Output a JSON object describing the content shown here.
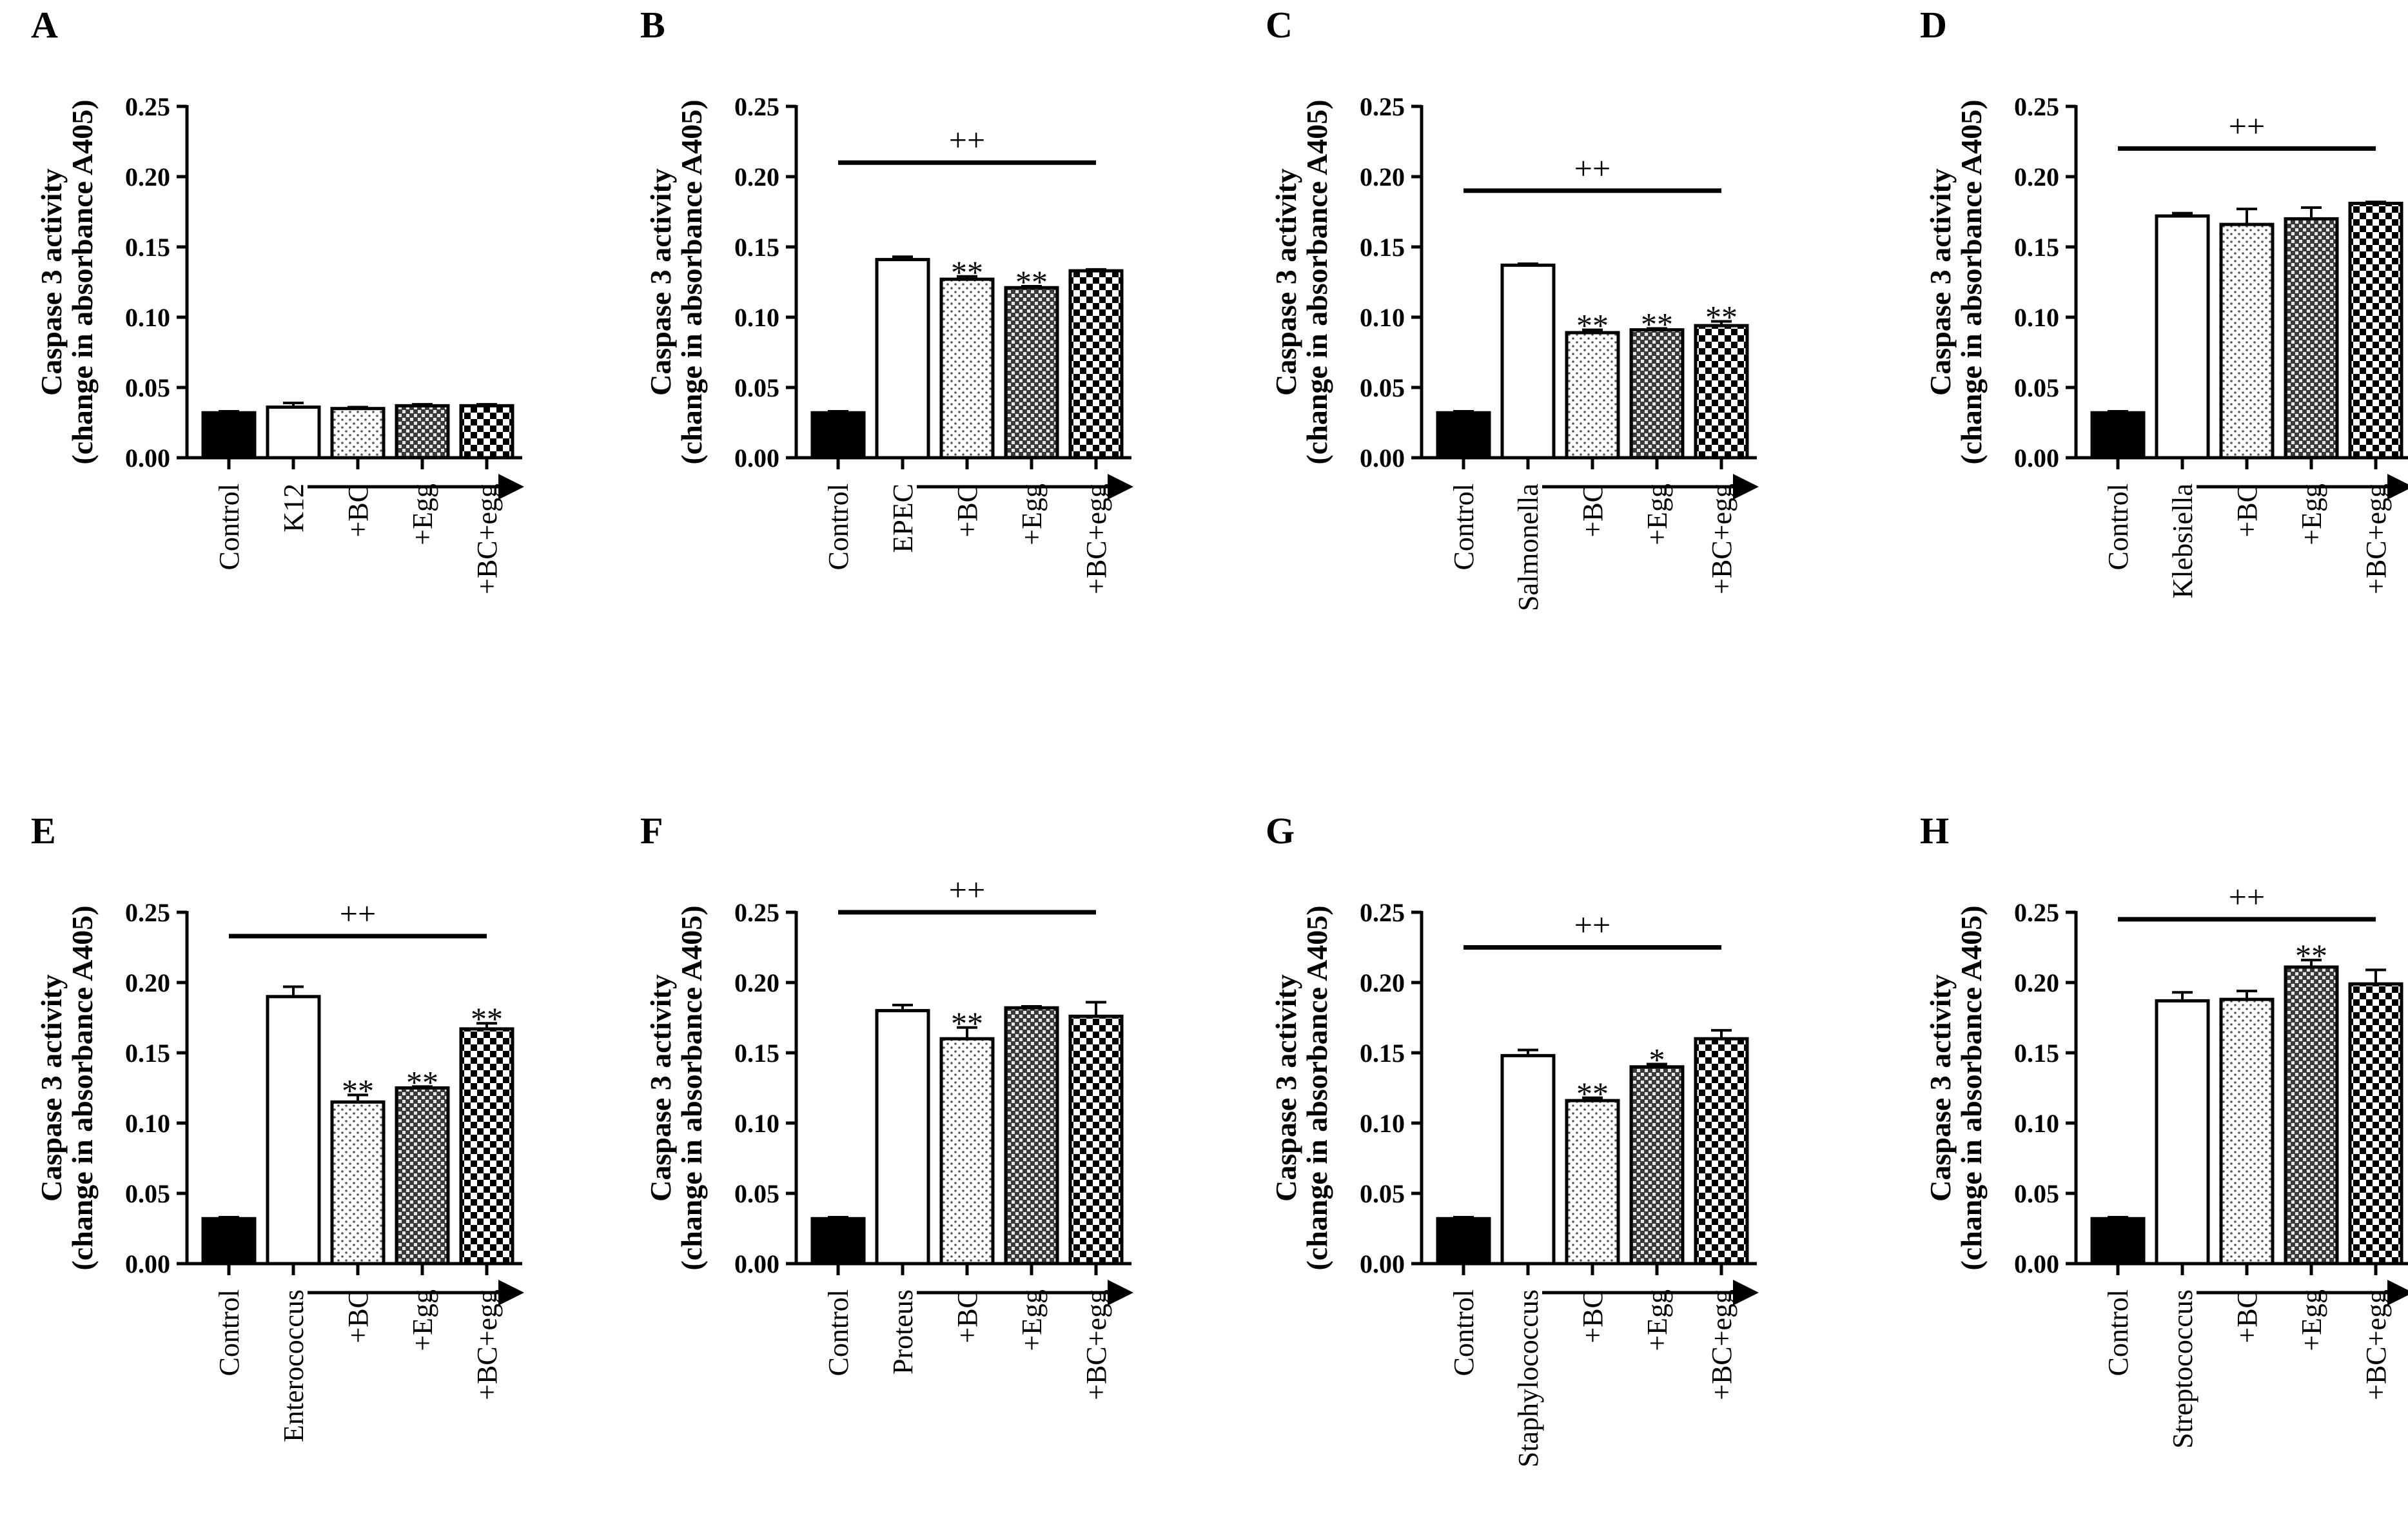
{
  "colors": {
    "control": "#000000",
    "infected": "#ffffff",
    "ink": "#000000"
  },
  "chart_data": [
    {
      "panel": "A",
      "type": "bar",
      "title": "",
      "ylabel": "Caspase 3 activity",
      "ylabel2": "(change in absorbance A405)",
      "yticks": [
        "0.00",
        "0.05",
        "0.10",
        "0.15",
        "0.20",
        "0.25"
      ],
      "ylim": [
        0,
        0.25
      ],
      "categories": [
        "Control",
        "K12",
        "+BC",
        "+Egg",
        "+BC+egg"
      ],
      "patterns": [
        "solid",
        "open",
        "dots",
        "grid",
        "checker"
      ],
      "values": [
        0.032,
        0.036,
        0.035,
        0.037,
        0.037
      ],
      "errors": [
        0.001,
        0.003,
        0.001,
        0.001,
        0.001
      ],
      "stars": [
        "",
        "",
        "",
        "",
        ""
      ],
      "bracket": null
    },
    {
      "panel": "B",
      "type": "bar",
      "title": "",
      "ylabel": "Caspase 3 activity",
      "ylabel2": "(change in absorbance A405)",
      "yticks": [
        "0.00",
        "0.05",
        "0.10",
        "0.15",
        "0.20",
        "0.25"
      ],
      "ylim": [
        0,
        0.25
      ],
      "categories": [
        "Control",
        "EPEC",
        "+BC",
        "+Egg",
        "+BC+egg"
      ],
      "patterns": [
        "solid",
        "open",
        "dots",
        "grid",
        "checker"
      ],
      "values": [
        0.032,
        0.141,
        0.127,
        0.121,
        0.133
      ],
      "errors": [
        0.001,
        0.002,
        0.002,
        0.001,
        0.001
      ],
      "stars": [
        "",
        "",
        "**",
        "**",
        ""
      ],
      "bracket": {
        "label": "++",
        "level": 0.21
      }
    },
    {
      "panel": "C",
      "type": "bar",
      "title": "",
      "ylabel": "Caspase 3 activity",
      "ylabel2": "(change in absorbance A405)",
      "yticks": [
        "0.00",
        "0.05",
        "0.10",
        "0.15",
        "0.20",
        "0.25"
      ],
      "ylim": [
        0,
        0.25
      ],
      "categories": [
        "Control",
        "Salmonella",
        "+BC",
        "+Egg",
        "+BC+egg"
      ],
      "patterns": [
        "solid",
        "open",
        "dots",
        "grid",
        "checker"
      ],
      "values": [
        0.032,
        0.137,
        0.089,
        0.091,
        0.094
      ],
      "errors": [
        0.001,
        0.001,
        0.002,
        0.001,
        0.003
      ],
      "stars": [
        "",
        "",
        "**",
        "**",
        "**"
      ],
      "bracket": {
        "label": "++",
        "level": 0.19
      }
    },
    {
      "panel": "D",
      "type": "bar",
      "title": "",
      "ylabel": "Caspase 3 activity",
      "ylabel2": "(change in absorbance A405)",
      "yticks": [
        "0.00",
        "0.05",
        "0.10",
        "0.15",
        "0.20",
        "0.25"
      ],
      "ylim": [
        0,
        0.25
      ],
      "categories": [
        "Control",
        "Klebsiella",
        "+BC",
        "+Egg",
        "+BC+egg"
      ],
      "patterns": [
        "solid",
        "open",
        "dots",
        "grid",
        "checker"
      ],
      "values": [
        0.032,
        0.172,
        0.166,
        0.17,
        0.181
      ],
      "errors": [
        0.001,
        0.002,
        0.011,
        0.008,
        0.001
      ],
      "stars": [
        "",
        "",
        "",
        "",
        ""
      ],
      "bracket": {
        "label": "++",
        "level": 0.22
      }
    },
    {
      "panel": "E",
      "type": "bar",
      "title": "",
      "ylabel": "Caspase 3 activity",
      "ylabel2": "(change in absorbance A405)",
      "yticks": [
        "0.00",
        "0.05",
        "0.10",
        "0.15",
        "0.20",
        "0.25"
      ],
      "ylim": [
        0,
        0.25
      ],
      "categories": [
        "Control",
        "Enterococcus",
        "+BC",
        "+Egg",
        "+BC+egg"
      ],
      "patterns": [
        "solid",
        "open",
        "dots",
        "grid",
        "checker"
      ],
      "values": [
        0.032,
        0.19,
        0.115,
        0.125,
        0.167
      ],
      "errors": [
        0.001,
        0.007,
        0.005,
        0.001,
        0.004
      ],
      "stars": [
        "",
        "",
        "**",
        "**",
        "**"
      ],
      "bracket": {
        "label": "++",
        "level": 0.233
      }
    },
    {
      "panel": "F",
      "type": "bar",
      "title": "",
      "ylabel": "Caspase 3 activity",
      "ylabel2": "(change in absorbance A405)",
      "yticks": [
        "0.00",
        "0.05",
        "0.10",
        "0.15",
        "0.20",
        "0.25"
      ],
      "ylim": [
        0,
        0.25
      ],
      "categories": [
        "Control",
        "Proteus",
        "+BC",
        "+Egg",
        "+BC+egg"
      ],
      "patterns": [
        "solid",
        "open",
        "dots",
        "grid",
        "checker"
      ],
      "values": [
        0.032,
        0.18,
        0.16,
        0.182,
        0.176
      ],
      "errors": [
        0.001,
        0.004,
        0.008,
        0.001,
        0.01
      ],
      "stars": [
        "",
        "",
        "**",
        "",
        ""
      ],
      "bracket": {
        "label": "++",
        "level": 0.25
      }
    },
    {
      "panel": "G",
      "type": "bar",
      "title": "",
      "ylabel": "Caspase 3 activity",
      "ylabel2": "(change in absorbance A405)",
      "yticks": [
        "0.00",
        "0.05",
        "0.10",
        "0.15",
        "0.20",
        "0.25"
      ],
      "ylim": [
        0,
        0.25
      ],
      "categories": [
        "Control",
        "Staphylococcus",
        "+BC",
        "+Egg",
        "+BC+egg"
      ],
      "patterns": [
        "solid",
        "open",
        "dots",
        "grid",
        "checker"
      ],
      "values": [
        0.032,
        0.148,
        0.116,
        0.14,
        0.16
      ],
      "errors": [
        0.001,
        0.004,
        0.002,
        0.002,
        0.006
      ],
      "stars": [
        "",
        "",
        "**",
        "*",
        ""
      ],
      "bracket": {
        "label": "++",
        "level": 0.225
      }
    },
    {
      "panel": "H",
      "type": "bar",
      "title": "",
      "ylabel": "Caspase 3 activity",
      "ylabel2": "(change in absorbance A405)",
      "yticks": [
        "0.00",
        "0.05",
        "0.10",
        "0.15",
        "0.20",
        "0.25"
      ],
      "ylim": [
        0,
        0.25
      ],
      "categories": [
        "Control",
        "Streptococcus",
        "+BC",
        "+Egg",
        "+BC+egg"
      ],
      "patterns": [
        "solid",
        "open",
        "dots",
        "grid",
        "checker"
      ],
      "values": [
        0.032,
        0.187,
        0.188,
        0.211,
        0.199
      ],
      "errors": [
        0.001,
        0.006,
        0.006,
        0.005,
        0.01
      ],
      "stars": [
        "",
        "",
        "",
        "**",
        ""
      ],
      "bracket": {
        "label": "++",
        "level": 0.245
      }
    }
  ]
}
